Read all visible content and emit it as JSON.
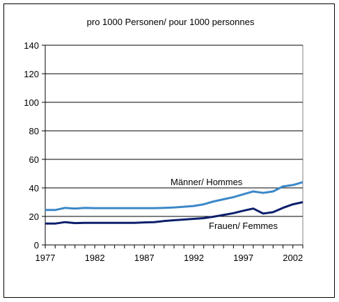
{
  "chart_data": {
    "type": "line",
    "title": "pro 1000 Personen/ pour 1000 personnes",
    "xlabel": "",
    "ylabel": "",
    "ylim": [
      0,
      140
    ],
    "xlim": [
      1977,
      2003
    ],
    "y_ticks": [
      "0",
      "20",
      "40",
      "60",
      "80",
      "100",
      "120",
      "140"
    ],
    "x_ticks": [
      "1977",
      "1982",
      "1987",
      "1992",
      "1997",
      "2002"
    ],
    "grid": "horizontal",
    "x": [
      1977,
      1978,
      1979,
      1980,
      1981,
      1982,
      1983,
      1984,
      1985,
      1986,
      1987,
      1988,
      1989,
      1990,
      1991,
      1992,
      1993,
      1994,
      1995,
      1996,
      1997,
      1998,
      1999,
      2000,
      2001,
      2002,
      2003
    ],
    "series": [
      {
        "name": "Männer/ Hommes",
        "color": "#3b87c8",
        "values": [
          24.5,
          24.5,
          26,
          25.5,
          26,
          25.8,
          25.8,
          25.8,
          25.8,
          25.8,
          25.8,
          25.8,
          26,
          26.3,
          26.8,
          27.3,
          28.5,
          30.5,
          32,
          33.5,
          35.5,
          37.5,
          36.5,
          37.5,
          41,
          42,
          44
        ]
      },
      {
        "name": "Frauen/ Femmes",
        "color": "#0b1f6b",
        "values": [
          15,
          15,
          16,
          15.3,
          15.5,
          15.5,
          15.5,
          15.5,
          15.5,
          15.5,
          15.8,
          16,
          16.8,
          17.3,
          17.8,
          18.3,
          18.8,
          19.8,
          21,
          22.3,
          24,
          25.5,
          22,
          23,
          26,
          28.5,
          30
        ]
      }
    ]
  }
}
